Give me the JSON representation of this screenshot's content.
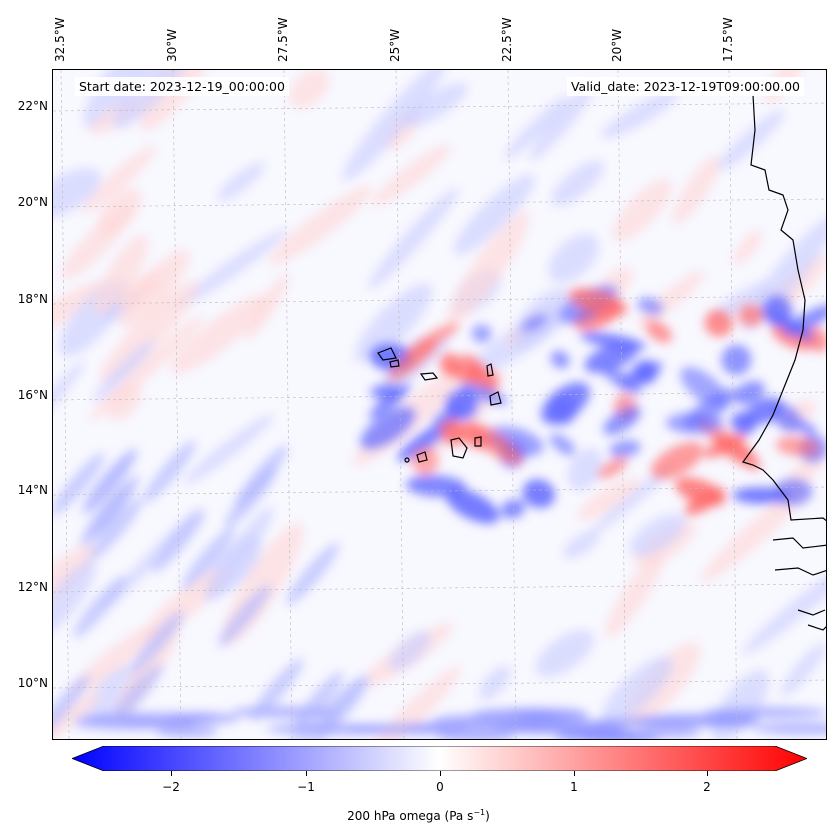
{
  "map": {
    "lon_labels": [
      "32.5°W",
      "30°W",
      "27.5°W",
      "25°W",
      "22.5°W",
      "20°W",
      "17.5°W"
    ],
    "lat_labels": [
      "22°N",
      "20°N",
      "18°N",
      "16°N",
      "14°N",
      "12°N",
      "10°N"
    ],
    "start_date": "Start date: 2023-12-19_00:00:00",
    "valid_date": "Valid_date: 2023-12-19T09:00:00.00"
  },
  "colorbar": {
    "ticks": [
      "−2",
      "−1",
      "0",
      "1",
      "2"
    ],
    "tick_values": [
      -2,
      -1,
      0,
      1,
      2
    ],
    "range": [
      -2.5,
      2.5
    ],
    "label": "200 hPa omega (Pa s",
    "label_sup": "−1",
    "label_end": ")",
    "colors": {
      "min": "#0000ff",
      "mid": "#ffffff",
      "max": "#ff0000"
    }
  }
}
